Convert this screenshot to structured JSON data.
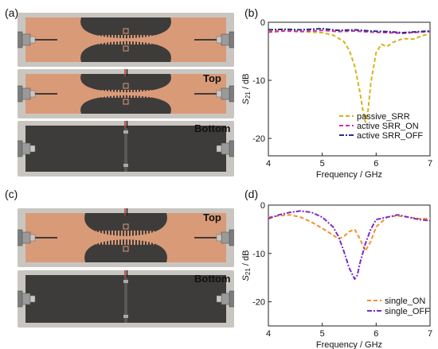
{
  "panels": {
    "a": {
      "label": "(a)",
      "top_tag": "Top",
      "bottom_tag": "Bottom"
    },
    "b": {
      "label": "(b)"
    },
    "c": {
      "label": "(c)",
      "top_tag": "Top",
      "bottom_tag": "Bottom"
    },
    "d": {
      "label": "(d)"
    }
  },
  "colors": {
    "pcb_board": "#3e3c3a",
    "copper": "#d99a78",
    "copper_dark": "#b87350",
    "photo_bg": "#c9c6c2"
  },
  "chart_data": [
    {
      "type": "line",
      "xlabel": "Frequency / GHz",
      "ylabel": "S21 / dB",
      "ylabel_main": "S",
      "ylabel_sub": "21",
      "ylabel_rest": " / dB",
      "xlim": [
        4,
        7
      ],
      "ylim": [
        -23,
        0
      ],
      "xticks": [
        4,
        5,
        6,
        7
      ],
      "yticks": [
        0,
        -10,
        -20
      ],
      "legend_position": "bottom-right",
      "series": [
        {
          "name": "passive_SRR",
          "color": "#d6b41c",
          "style": "dashed",
          "x": [
            4.0,
            4.2,
            4.5,
            4.8,
            5.0,
            5.2,
            5.4,
            5.5,
            5.6,
            5.7,
            5.75,
            5.8,
            5.85,
            5.9,
            6.0,
            6.1,
            6.2,
            6.3,
            6.5,
            6.7,
            6.8,
            6.9,
            7.0
          ],
          "y": [
            -1.5,
            -1.4,
            -1.5,
            -1.7,
            -1.8,
            -2.2,
            -3.3,
            -4.8,
            -7.5,
            -12.0,
            -15.0,
            -17.2,
            -15.2,
            -10.5,
            -5.2,
            -3.8,
            -4.2,
            -3.5,
            -2.8,
            -2.9,
            -2.5,
            -2.2,
            -2.0
          ]
        },
        {
          "name": "active SRR_ON",
          "color": "#cc2fa6",
          "style": "dashed",
          "x": [
            4.0,
            4.3,
            4.6,
            5.0,
            5.3,
            5.6,
            5.9,
            6.2,
            6.5,
            6.8,
            7.0
          ],
          "y": [
            -1.7,
            -1.5,
            -1.6,
            -1.4,
            -1.6,
            -1.5,
            -1.7,
            -1.8,
            -1.9,
            -1.7,
            -1.6
          ]
        },
        {
          "name": "active SRR_OFF",
          "color": "#2b2c8a",
          "style": "dashdot",
          "x": [
            4.0,
            4.3,
            4.6,
            5.0,
            5.3,
            5.6,
            5.9,
            6.2,
            6.5,
            6.8,
            7.0
          ],
          "y": [
            -1.3,
            -1.2,
            -1.3,
            -1.1,
            -1.4,
            -1.3,
            -1.5,
            -1.6,
            -1.8,
            -1.6,
            -1.5
          ]
        }
      ]
    },
    {
      "type": "line",
      "xlabel": "Frequency / GHz",
      "ylabel": "S21 / dB",
      "ylabel_main": "S",
      "ylabel_sub": "21",
      "ylabel_rest": " / dB",
      "xlim": [
        4,
        7
      ],
      "ylim": [
        -25,
        0
      ],
      "xticks": [
        4,
        5,
        6,
        7
      ],
      "yticks": [
        0,
        -10,
        -20
      ],
      "legend_position": "bottom-right",
      "series": [
        {
          "name": "single_ON",
          "color": "#f0922e",
          "style": "dashed",
          "x": [
            4.0,
            4.2,
            4.4,
            4.6,
            4.8,
            5.0,
            5.2,
            5.3,
            5.4,
            5.5,
            5.6,
            5.7,
            5.8,
            5.9,
            6.0,
            6.2,
            6.4,
            6.6,
            6.8,
            7.0
          ],
          "y": [
            -2.5,
            -2.2,
            -2.0,
            -2.5,
            -3.5,
            -4.8,
            -6.2,
            -7.0,
            -6.5,
            -5.5,
            -5.0,
            -7.0,
            -9.5,
            -7.5,
            -4.5,
            -2.5,
            -2.2,
            -2.5,
            -2.8,
            -2.8
          ]
        },
        {
          "name": "single_OFF",
          "color": "#7b2bc7",
          "style": "dashdot",
          "x": [
            4.0,
            4.2,
            4.4,
            4.6,
            4.8,
            5.0,
            5.2,
            5.3,
            5.4,
            5.5,
            5.6,
            5.65,
            5.7,
            5.8,
            5.9,
            6.0,
            6.2,
            6.4,
            6.6,
            6.8,
            7.0
          ],
          "y": [
            -2.8,
            -2.0,
            -1.5,
            -1.2,
            -1.5,
            -2.5,
            -4.5,
            -6.5,
            -9.5,
            -13.0,
            -15.3,
            -14.5,
            -12.0,
            -8.0,
            -5.0,
            -3.0,
            -2.5,
            -2.0,
            -2.5,
            -3.0,
            -3.2
          ]
        }
      ]
    }
  ]
}
